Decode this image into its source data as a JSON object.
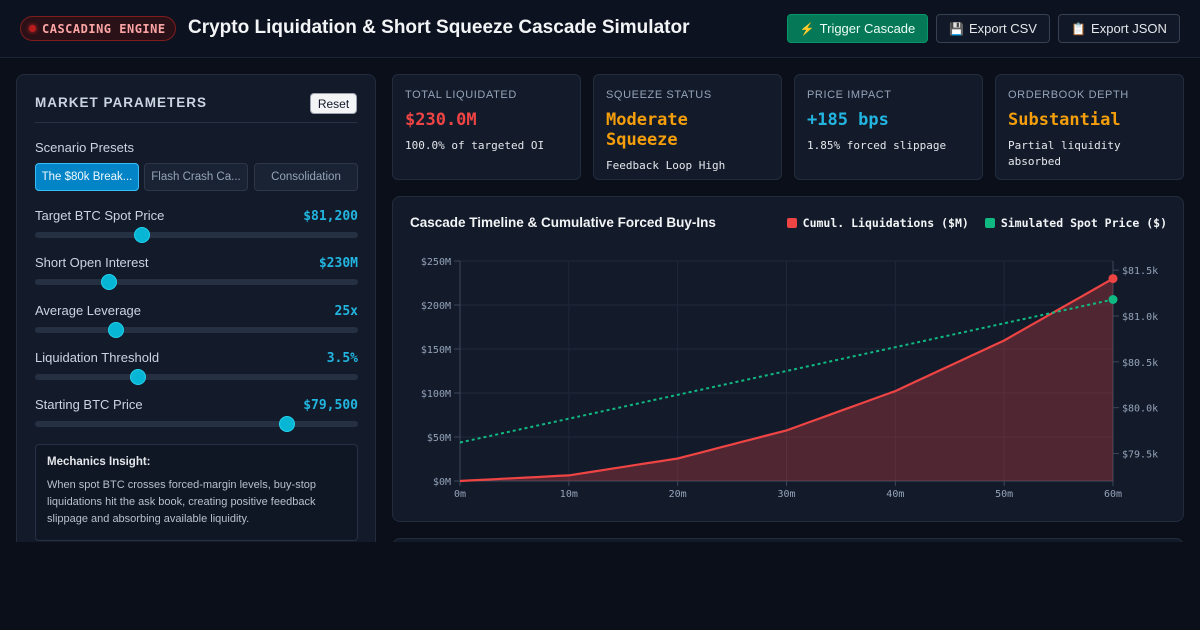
{
  "header": {
    "badge": "CASCADING ENGINE",
    "title": "Crypto Liquidation & Short Squeeze Cascade Simulator",
    "buttons": {
      "trigger": "Trigger Cascade",
      "csv": "Export CSV",
      "json": "Export JSON"
    },
    "icons": {
      "trigger": "lightning-icon",
      "csv": "floppy-disk-icon",
      "json": "clipboard-icon"
    }
  },
  "panel": {
    "title": "MARKET PARAMETERS",
    "reset": "Reset",
    "presets_label": "Scenario Presets",
    "presets": [
      "The $80k Break...",
      "Flash Crash Ca...",
      "Consolidation"
    ],
    "params": [
      {
        "label": "Target BTC Spot Price",
        "value": "$81,200",
        "level": 0.33
      },
      {
        "label": "Short Open Interest",
        "value": "$230M",
        "level": 0.23
      },
      {
        "label": "Average Leverage",
        "value": "25x",
        "level": 0.25
      },
      {
        "label": "Liquidation Threshold",
        "value": "3.5%",
        "level": 0.32
      },
      {
        "label": "Starting BTC Price",
        "value": "$79,500",
        "level": 0.78
      }
    ],
    "insight": {
      "title": "Mechanics Insight:",
      "body": "When spot BTC crosses forced-margin levels, buy-stop liquidations hit the ask book, creating positive feedback slippage and absorbing available liquidity."
    }
  },
  "cards": [
    {
      "label": "TOTAL LIQUIDATED",
      "value": "$230.0M",
      "sub": "100.0% of targeted OI",
      "color": "#ef4444"
    },
    {
      "label": "SQUEEZE STATUS",
      "value": "Moderate Squeeze",
      "sub": "Feedback Loop High",
      "color": "#f59e0b"
    },
    {
      "label": "PRICE IMPACT",
      "value": "+185 bps",
      "sub": "1.85% forced slippage",
      "color": "#22b5e0"
    },
    {
      "label": "ORDERBOOK DEPTH",
      "value": "Substantial",
      "sub": "Partial liquidity absorbed",
      "color": "#f59e0b"
    }
  ],
  "chart_title": "Cascade Timeline & Cumulative Forced Buy-Ins",
  "chart_data": {
    "type": "line",
    "title": "Cascade Timeline & Cumulative Forced Buy-Ins",
    "x": [
      0,
      10,
      20,
      30,
      40,
      50,
      60
    ],
    "x_tick_labels": [
      "0m",
      "10m",
      "20m",
      "30m",
      "40m",
      "50m",
      "60m"
    ],
    "xlim": [
      0,
      60
    ],
    "y_left": {
      "ylim": [
        0,
        250
      ],
      "tick_values": [
        0,
        50,
        100,
        150,
        200,
        250
      ],
      "tick_labels": [
        "$0M",
        "$50M",
        "$100M",
        "$150M",
        "$200M",
        "$250M"
      ]
    },
    "y_right": {
      "ylim": [
        79200,
        81600
      ],
      "tick_values": [
        79500,
        80000,
        80500,
        81000,
        81500
      ],
      "tick_labels": [
        "$79.5k",
        "$80.0k",
        "$80.5k",
        "$81.0k",
        "$81.5k"
      ]
    },
    "series": [
      {
        "name": "Cumul. Liquidations ($M)",
        "axis": "left",
        "color": "#ef4444",
        "style": "solid-area",
        "values": [
          0,
          6.4,
          25.6,
          57.5,
          102.2,
          159.7,
          230
        ]
      },
      {
        "name": "Simulated Spot Price ($)",
        "axis": "right",
        "color": "#10b981",
        "style": "dashed",
        "values": [
          79620,
          79880,
          80140,
          80400,
          80660,
          80920,
          81180
        ]
      }
    ],
    "legend_position": "top-right",
    "grid": true
  }
}
